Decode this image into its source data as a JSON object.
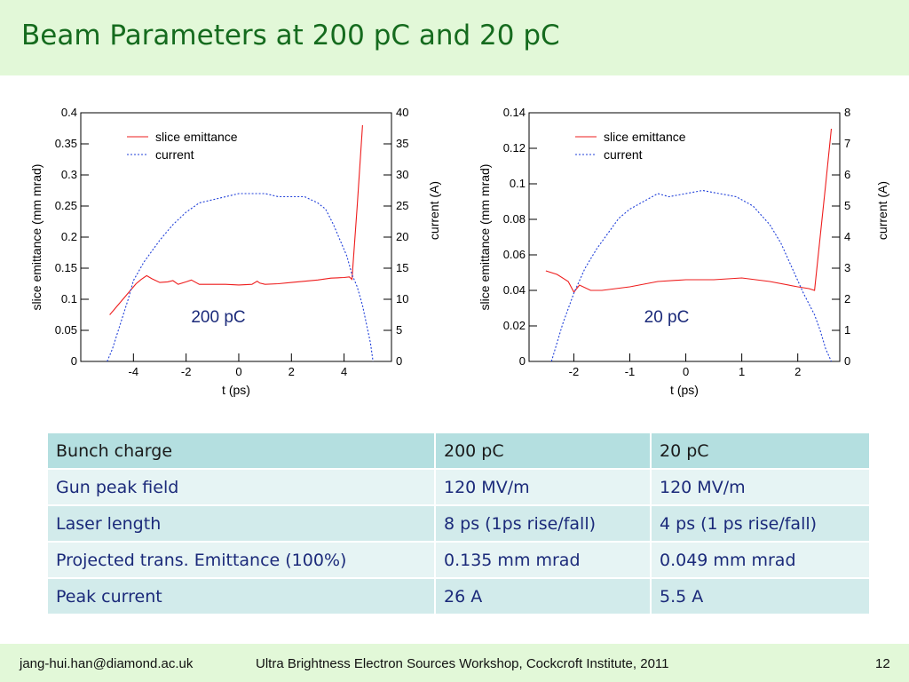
{
  "slide": {
    "title": "Beam Parameters at 200 pC and 20 pC"
  },
  "chart_data": [
    {
      "type": "line",
      "annotation": "200 pC",
      "xlabel": "t (ps)",
      "ylabel": "slice emittance (mm mrad)",
      "y2label": "current (A)",
      "xlim": [
        -6,
        5.8
      ],
      "ylim": [
        0,
        0.4
      ],
      "y2lim": [
        0,
        40
      ],
      "xticks": [
        "-4",
        "-2",
        "0",
        "2",
        "4"
      ],
      "yticks": [
        "0",
        "0.05",
        "0.1",
        "0.15",
        "0.2",
        "0.25",
        "0.3",
        "0.35",
        "0.4"
      ],
      "y2ticks": [
        "0",
        "5",
        "10",
        "15",
        "20",
        "25",
        "30",
        "35",
        "40"
      ],
      "legend": "top-left",
      "series": [
        {
          "name": "slice emittance",
          "axis": "left",
          "color": "#ee1c1c",
          "style": "solid",
          "x": [
            -4.9,
            -4.5,
            -4.2,
            -3.9,
            -3.7,
            -3.5,
            -3.3,
            -3.0,
            -2.7,
            -2.5,
            -2.3,
            -2.0,
            -1.8,
            -1.5,
            -1.0,
            -0.5,
            0.0,
            0.5,
            0.7,
            0.8,
            1.0,
            1.5,
            2.0,
            2.5,
            3.0,
            3.5,
            4.0,
            4.2,
            4.3,
            4.5,
            4.7
          ],
          "y": [
            0.075,
            0.095,
            0.11,
            0.125,
            0.132,
            0.138,
            0.133,
            0.127,
            0.128,
            0.13,
            0.124,
            0.128,
            0.131,
            0.124,
            0.124,
            0.124,
            0.123,
            0.124,
            0.129,
            0.126,
            0.124,
            0.125,
            0.127,
            0.129,
            0.131,
            0.134,
            0.135,
            0.136,
            0.132,
            0.25,
            0.38
          ]
        },
        {
          "name": "current",
          "axis": "right",
          "color": "#1f3fd9",
          "style": "dotted",
          "x": [
            -5.0,
            -4.8,
            -4.5,
            -4.2,
            -4.0,
            -3.6,
            -3.0,
            -2.5,
            -2.0,
            -1.5,
            -1.0,
            -0.5,
            0.0,
            0.5,
            1.0,
            1.5,
            2.0,
            2.5,
            3.0,
            3.3,
            3.6,
            3.9,
            4.1,
            4.3,
            4.5,
            4.7,
            4.9,
            5.0,
            5.1
          ],
          "y": [
            0,
            2,
            6,
            10,
            13,
            16,
            19.5,
            22,
            24,
            25.5,
            26,
            26.5,
            27,
            27,
            27,
            26.5,
            26.5,
            26.5,
            25.5,
            24.5,
            22,
            19,
            17,
            14,
            12,
            9,
            5,
            3,
            0
          ]
        }
      ]
    },
    {
      "type": "line",
      "annotation": "20 pC",
      "xlabel": "t (ps)",
      "ylabel": "slice emittance (mm mrad)",
      "y2label": "current (A)",
      "xlim": [
        -2.8,
        2.75
      ],
      "ylim": [
        0,
        0.14
      ],
      "y2lim": [
        0,
        8
      ],
      "xticks": [
        "-2",
        "-1",
        "0",
        "1",
        "2"
      ],
      "yticks": [
        "0",
        "0.02",
        "0.04",
        "0.06",
        "0.08",
        "0.1",
        "0.12",
        "0.14"
      ],
      "y2ticks": [
        "0",
        "1",
        "2",
        "3",
        "4",
        "5",
        "6",
        "7",
        "8"
      ],
      "legend": "top-left",
      "series": [
        {
          "name": "slice emittance",
          "axis": "left",
          "color": "#ee1c1c",
          "style": "solid",
          "x": [
            -2.5,
            -2.3,
            -2.1,
            -2.0,
            -1.9,
            -1.7,
            -1.5,
            -1.0,
            -0.5,
            0.0,
            0.5,
            1.0,
            1.5,
            2.0,
            2.2,
            2.3,
            2.4,
            2.5,
            2.6
          ],
          "y": [
            0.051,
            0.049,
            0.045,
            0.039,
            0.043,
            0.04,
            0.04,
            0.042,
            0.045,
            0.046,
            0.046,
            0.047,
            0.045,
            0.042,
            0.041,
            0.04,
            0.07,
            0.1,
            0.131
          ]
        },
        {
          "name": "current",
          "axis": "right",
          "color": "#1f3fd9",
          "style": "dotted",
          "x": [
            -2.4,
            -2.2,
            -2.0,
            -1.8,
            -1.6,
            -1.4,
            -1.2,
            -1.0,
            -0.8,
            -0.5,
            -0.3,
            0.0,
            0.3,
            0.6,
            0.9,
            1.2,
            1.5,
            1.7,
            1.9,
            2.1,
            2.3,
            2.4,
            2.5,
            2.6
          ],
          "y": [
            0,
            1.2,
            2.2,
            3.0,
            3.6,
            4.1,
            4.6,
            4.9,
            5.1,
            5.4,
            5.3,
            5.4,
            5.5,
            5.4,
            5.3,
            5.0,
            4.4,
            3.8,
            3.0,
            2.2,
            1.5,
            1.0,
            0.4,
            0
          ]
        }
      ]
    }
  ],
  "table": {
    "header": [
      "Bunch charge",
      "200 pC",
      "20 pC"
    ],
    "rows": [
      [
        "Gun peak field",
        "120 MV/m",
        "120 MV/m"
      ],
      [
        "Laser length",
        "8 ps (1ps rise/fall)",
        "4 ps (1 ps rise/fall)"
      ],
      [
        "Projected trans. Emittance (100%)",
        "0.135 mm mrad",
        "0.049 mm mrad"
      ],
      [
        "Peak current",
        "26 A",
        "5.5 A"
      ]
    ]
  },
  "footer": {
    "email": "jang-hui.han@diamond.ac.uk",
    "event": "Ultra Brightness Electron Sources Workshop, Cockcroft Institute, 2011",
    "page": "12"
  }
}
